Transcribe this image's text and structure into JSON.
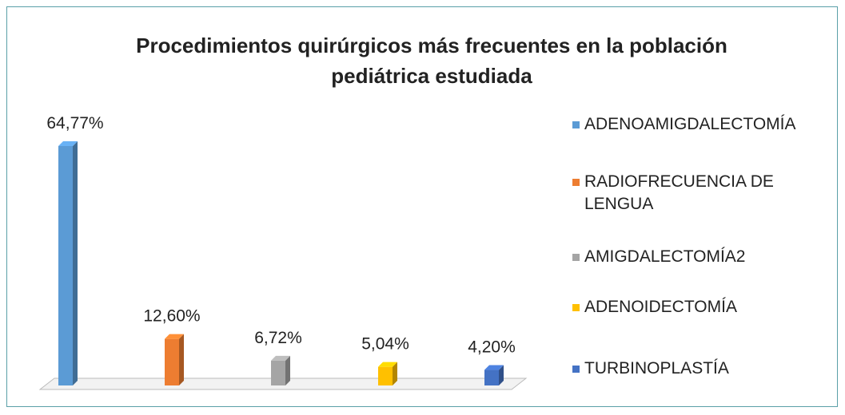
{
  "chart_data": {
    "type": "bar",
    "title": "Procedimientos quirúrgicos más frecuentes en la población pediátrica estudiada",
    "categories": [
      "ADENOAMIGDALECTOMÍA",
      "RADIOFRECUENCIA DE LENGUA",
      "AMIGDALECTOMÍA2",
      "ADENOIDECTOMÍA",
      "TURBINOPLASTÍA"
    ],
    "values": [
      64.77,
      12.6,
      6.72,
      5.04,
      4.2
    ],
    "value_labels": [
      "64,77%",
      "12,60%",
      "6,72%",
      "5,04%",
      "4,20%"
    ],
    "colors": [
      "#5b9bd5",
      "#ed7d31",
      "#a5a5a5",
      "#ffc000",
      "#4472c4"
    ]
  }
}
